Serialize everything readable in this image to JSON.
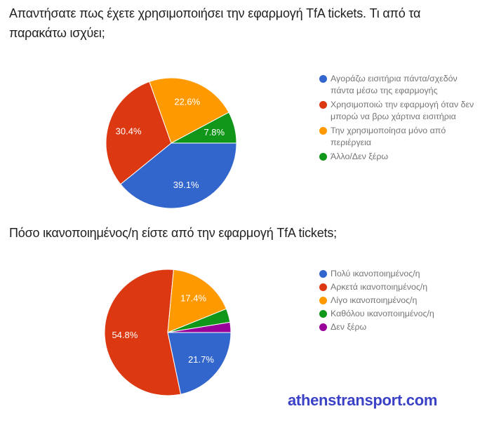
{
  "chart_data": [
    {
      "type": "pie",
      "title": "Απαντήσατε πως έχετε χρησιμοποιήσει την εφαρμογή TfA tickets. Τι από τα παρακάτω ισχύει;",
      "labels": [
        "Αγοράζω εισιτήρια πάντα/σχεδόν πάντα μέσω της εφαρμογής",
        "Χρησιμοποιώ την εφαρμογή όταν δεν μπορώ να βρω χάρτινα εισιτήρια",
        "Την χρησιμοποίησα μόνο από περιέργεια",
        "Άλλο/Δεν ξέρω"
      ],
      "values_pct": [
        39.1,
        30.4,
        22.6,
        7.8
      ],
      "value_labels": [
        "39.1%",
        "30.4%",
        "22.6%",
        "7.8%"
      ],
      "colors": [
        "#3366cc",
        "#dc3912",
        "#ff9900",
        "#109618"
      ],
      "legend_position": "right",
      "start_angle_deg": 90,
      "direction": "clockwise",
      "slice_label_color": "#ffffff",
      "slice_border_color": "#ffffff"
    },
    {
      "type": "pie",
      "title": "Πόσο ικανοποιημένος/η είστε από την εφαρμογή TfA tickets;",
      "labels": [
        "Πολύ ικανοποιημένος/η",
        "Αρκετά ικανοποιημένος/η",
        "Λίγο ικανοποιημένος/η",
        "Καθόλου ικανοποιημένος/η",
        "Δεν ξέρω"
      ],
      "values_pct": [
        21.7,
        54.8,
        17.4,
        3.5,
        2.6
      ],
      "value_labels": [
        "21.7%",
        "54.8%",
        "17.4%",
        "",
        ""
      ],
      "estimated_indices": [
        3,
        4
      ],
      "colors": [
        "#3366cc",
        "#dc3912",
        "#ff9900",
        "#109618",
        "#990099"
      ],
      "legend_position": "right",
      "start_angle_deg": 90,
      "direction": "clockwise",
      "slice_label_color": "#ffffff",
      "slice_border_color": "#ffffff"
    }
  ],
  "watermark": {
    "text": "athenstransport.com",
    "color": "#3a41c6"
  }
}
